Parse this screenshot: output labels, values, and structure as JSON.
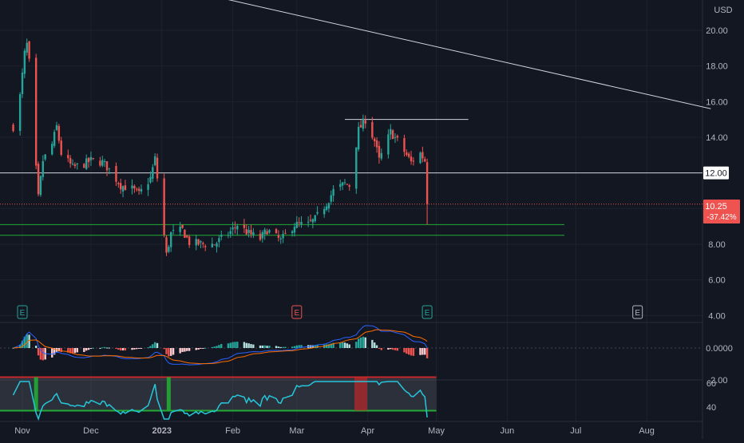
{
  "currency_label": "USD",
  "colors": {
    "background": "#131722",
    "up": "#26a69a",
    "down": "#ef5350",
    "axis_text": "#b2b5be",
    "grid": "#1e222d",
    "macd_line": "#2962ff",
    "signal_line": "#ff6d00",
    "rsi_line": "#26c6da",
    "green_box": "#22ab35",
    "red_box": "#c62828",
    "white_line": "#d1d4dc"
  },
  "last_price": {
    "value": "10.25",
    "change": "-37.42%"
  },
  "level_label": "12.00",
  "earnings_markers": [
    {
      "date": "2022-11-01",
      "label": "E",
      "color": "#26a69a"
    },
    {
      "date": "2023-03-01",
      "label": "E",
      "color": "#ef5350"
    },
    {
      "date": "2023-04-27",
      "label": "E",
      "color": "#26a69a"
    },
    {
      "date": "2023-07-28",
      "label": "E",
      "color": "#b2b5be"
    }
  ],
  "chart_data": {
    "type": "candlestick",
    "x_tick_labels": [
      "Nov",
      "Dec",
      "2023",
      "Feb",
      "Mar",
      "Apr",
      "May",
      "Jun",
      "Jul",
      "Aug"
    ],
    "price_axis": {
      "ticks": [
        "20.00",
        "18.00",
        "16.00",
        "14.00",
        "12.00",
        "10.00",
        "8.00",
        "6.00",
        "4.00"
      ],
      "ylim": [
        3.6,
        21.3
      ]
    },
    "horizontal_lines": [
      {
        "price": 12.0,
        "style": "white"
      },
      {
        "price": 15.0,
        "style": "white-short"
      },
      {
        "price": 9.1,
        "style": "green"
      },
      {
        "price": 8.5,
        "style": "green"
      },
      {
        "price": 10.25,
        "style": "red-dotted"
      }
    ],
    "trendline": [
      {
        "date": "2022-12-17",
        "price": 23.0
      },
      {
        "date": "2023-08-29",
        "price": 15.6
      }
    ],
    "anchor_closes": [
      [
        "2022-10-28",
        14.6
      ],
      [
        "2022-10-31",
        16.3
      ],
      [
        "2022-11-02",
        18.7
      ],
      [
        "2022-11-03",
        19.2
      ],
      [
        "2022-11-04",
        18.2
      ],
      [
        "2022-11-07",
        12.2
      ],
      [
        "2022-11-08",
        10.6
      ],
      [
        "2022-11-10",
        12.7
      ],
      [
        "2022-11-14",
        13.6
      ],
      [
        "2022-11-16",
        14.6
      ],
      [
        "2022-11-18",
        13.1
      ],
      [
        "2022-11-23",
        12.3
      ],
      [
        "2022-11-28",
        12.5
      ],
      [
        "2022-12-01",
        12.7
      ],
      [
        "2022-12-06",
        12.6
      ],
      [
        "2022-12-09",
        12.2
      ],
      [
        "2022-12-14",
        11.3
      ],
      [
        "2022-12-19",
        11.1
      ],
      [
        "2022-12-22",
        10.8
      ],
      [
        "2022-12-27",
        11.7
      ],
      [
        "2022-12-29",
        12.8
      ],
      [
        "2023-01-03",
        7.4
      ],
      [
        "2023-01-05",
        8.6
      ],
      [
        "2023-01-10",
        8.8
      ],
      [
        "2023-01-13",
        8.1
      ],
      [
        "2023-01-19",
        8.0
      ],
      [
        "2023-01-24",
        8.0
      ],
      [
        "2023-01-27",
        8.3
      ],
      [
        "2023-01-31",
        8.7
      ],
      [
        "2023-02-03",
        9.1
      ],
      [
        "2023-02-08",
        8.6
      ],
      [
        "2023-02-13",
        8.3
      ],
      [
        "2023-02-16",
        8.8
      ],
      [
        "2023-02-22",
        8.2
      ],
      [
        "2023-02-28",
        9.1
      ],
      [
        "2023-03-06",
        9.1
      ],
      [
        "2023-03-09",
        9.4
      ],
      [
        "2023-03-14",
        10.3
      ],
      [
        "2023-03-17",
        11.0
      ],
      [
        "2023-03-22",
        11.4
      ],
      [
        "2023-03-24",
        11.3
      ],
      [
        "2023-03-28",
        14.4
      ],
      [
        "2023-03-31",
        15.0
      ],
      [
        "2023-04-04",
        13.8
      ],
      [
        "2023-04-06",
        12.7
      ],
      [
        "2023-04-11",
        14.3
      ],
      [
        "2023-04-14",
        13.8
      ],
      [
        "2023-04-18",
        13.0
      ],
      [
        "2023-04-20",
        12.6
      ],
      [
        "2023-04-24",
        13.1
      ],
      [
        "2023-04-26",
        12.7
      ],
      [
        "2023-04-27",
        10.25
      ]
    ],
    "macd_axis": {
      "ticks": [
        "0.0000",
        "-2.00"
      ]
    },
    "rsi_axis": {
      "ticks": [
        "60",
        "40"
      ],
      "band_high": 65,
      "band_low": 37
    },
    "rsi_highlights": [
      {
        "date": "2022-11-07",
        "color": "green"
      },
      {
        "date": "2023-01-04",
        "color": "green"
      },
      {
        "date": "2023-03-29",
        "color": "red"
      }
    ]
  }
}
